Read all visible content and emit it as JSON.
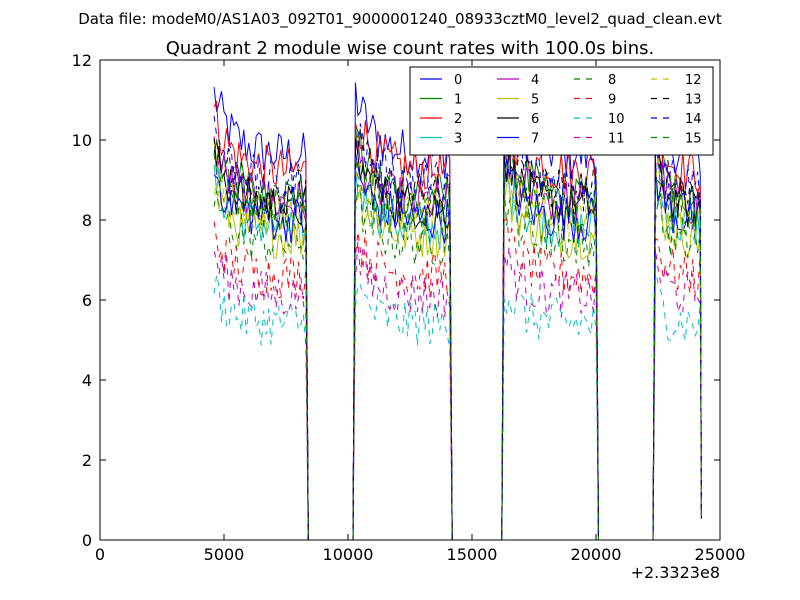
{
  "chart_data": {
    "type": "line",
    "suptitle": "Data file: modeM0/AS1A03_092T01_9000001240_08933cztM0_level2_quad_clean.evt",
    "title": "Quadrant 2 module wise count rates with 100.0s bins.",
    "xlabel": "",
    "ylabel": "",
    "x_offset_label": "+2.3323e8",
    "xlim": [
      0,
      25000
    ],
    "ylim": [
      0,
      12
    ],
    "xticks": [
      "0",
      "5000",
      "10000",
      "15000",
      "20000",
      "25000"
    ],
    "yticks": [
      "0",
      "2",
      "4",
      "6",
      "8",
      "10",
      "12"
    ],
    "legend_position": "top-right",
    "segments": [
      {
        "start": 4600,
        "end": 8300
      },
      {
        "start": 10300,
        "end": 14100
      },
      {
        "start": 16300,
        "end": 20000
      },
      {
        "start": 22400,
        "end": 24200
      }
    ],
    "gap_points_x": [
      8400,
      10200,
      14200,
      16200,
      20100,
      22300
    ],
    "series": [
      {
        "name": "0",
        "color": "#0000ff",
        "style": "solid",
        "level": 9.6
      },
      {
        "name": "1",
        "color": "#008000",
        "style": "solid",
        "level": 8.6
      },
      {
        "name": "2",
        "color": "#ff0000",
        "style": "solid",
        "level": 9.2
      },
      {
        "name": "3",
        "color": "#00bfbf",
        "style": "solid",
        "level": 7.8
      },
      {
        "name": "4",
        "color": "#bf00bf",
        "style": "solid",
        "level": 8.4
      },
      {
        "name": "5",
        "color": "#bfbf00",
        "style": "solid",
        "level": 7.6
      },
      {
        "name": "6",
        "color": "#000000",
        "style": "solid",
        "level": 8.3
      },
      {
        "name": "7",
        "color": "#0000ff",
        "style": "solid",
        "level": 8.0
      },
      {
        "name": "8",
        "color": "#008000",
        "style": "dashed",
        "level": 7.4
      },
      {
        "name": "9",
        "color": "#ff0000",
        "style": "dashed",
        "level": 6.6
      },
      {
        "name": "10",
        "color": "#00bfbf",
        "style": "dashed",
        "level": 5.4
      },
      {
        "name": "11",
        "color": "#bf00bf",
        "style": "dashed",
        "level": 6.1
      },
      {
        "name": "12",
        "color": "#bfbf00",
        "style": "dashed",
        "level": 8.1
      },
      {
        "name": "13",
        "color": "#000000",
        "style": "dashed",
        "level": 8.7
      },
      {
        "name": "14",
        "color": "#0000ff",
        "style": "dashed",
        "level": 8.9
      },
      {
        "name": "15",
        "color": "#008000",
        "style": "dashed",
        "level": 8.2
      }
    ]
  }
}
